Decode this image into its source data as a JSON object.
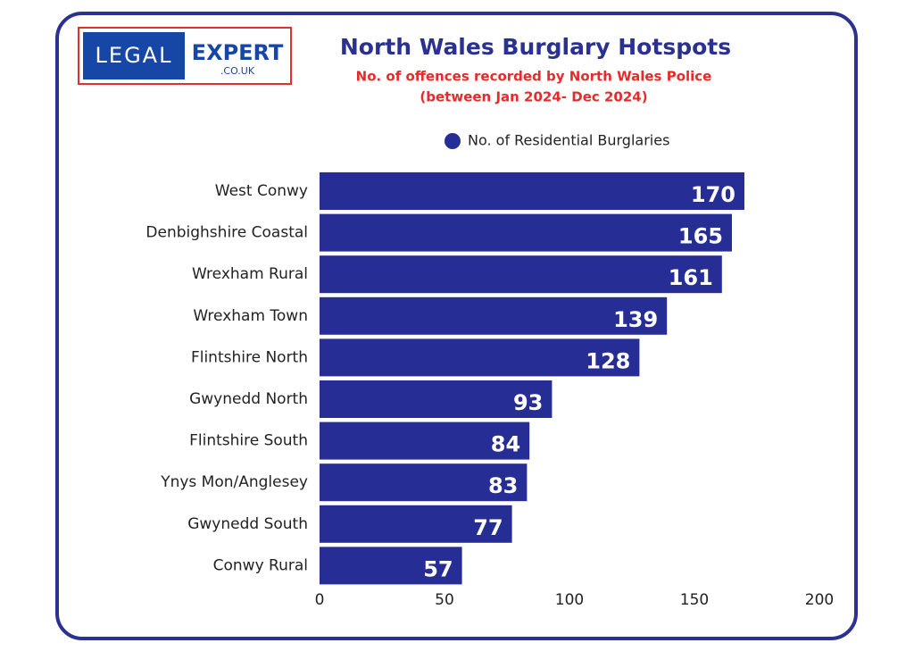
{
  "logo": {
    "left": "LEGAL",
    "right": "EXPERT",
    "domain": ".CO.UK"
  },
  "chart_data": {
    "type": "bar",
    "orientation": "horizontal",
    "title": "North Wales Burglary Hotspots",
    "subtitle": [
      "No. of offences recorded by North Wales Police",
      "(between Jan 2024- Dec 2024)"
    ],
    "categories": [
      "West Conwy",
      "Denbighshire Coastal",
      "Wrexham Rural",
      "Wrexham Town",
      "Flintshire North",
      "Gwynedd North",
      "Flintshire South",
      "Ynys Mon/Anglesey",
      "Gwynedd South",
      "Conwy Rural"
    ],
    "series": [
      {
        "name": "No. of Residential Burglaries",
        "color": "#262e96",
        "values": [
          170,
          165,
          161,
          139,
          128,
          93,
          84,
          83,
          77,
          57
        ]
      }
    ],
    "xlim": [
      0,
      200
    ],
    "xticks": [
      0,
      50,
      100,
      150,
      200
    ],
    "grid": false,
    "legend": "top"
  }
}
